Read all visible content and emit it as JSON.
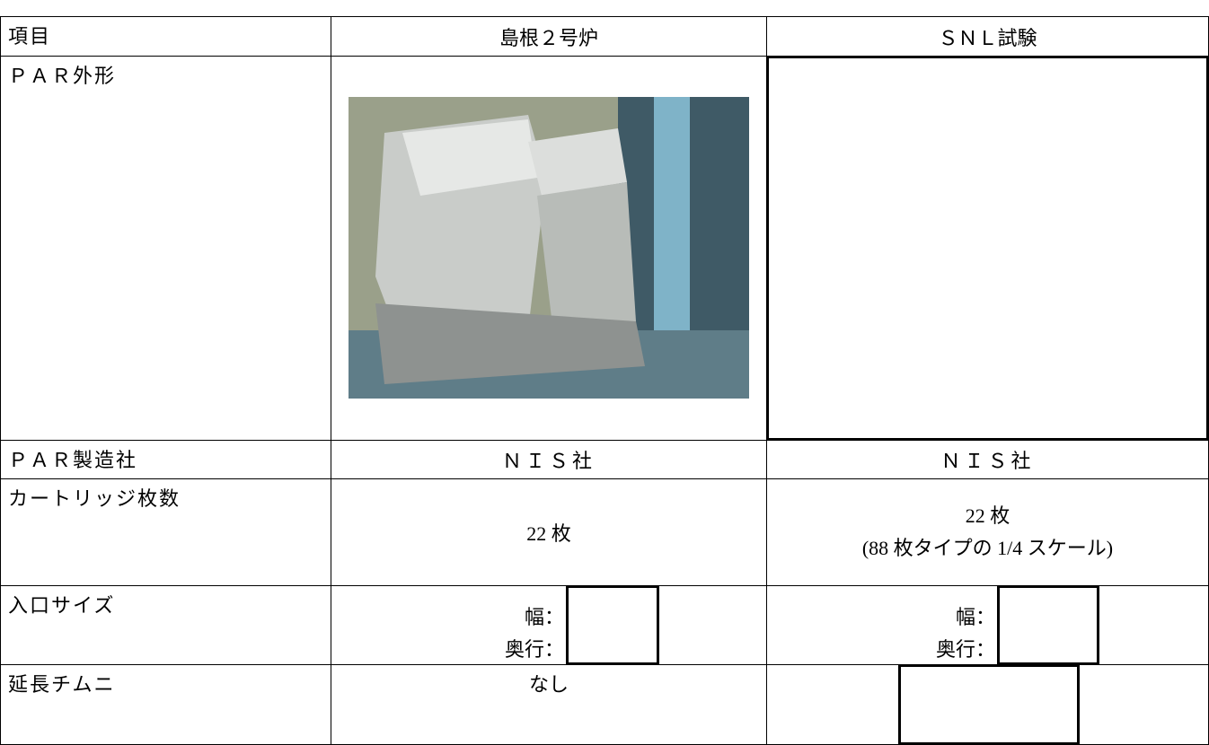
{
  "table": {
    "header": [
      "項目",
      "島根２号炉",
      "ＳＮＬ試験"
    ],
    "rows": [
      [
        "ＰＡＲ外形"
      ],
      [
        "ＰＡＲ製造社",
        "ＮＩＳ社",
        "ＮＩＳ社"
      ],
      [
        "カートリッジ枚数",
        "22 枚",
        "22 枚",
        "(88 枚タイプの 1/4 スケール)"
      ],
      [
        "入口サイズ",
        "幅：",
        "奥行：",
        "幅：",
        "奥行："
      ],
      [
        "延長チムニ",
        "なし"
      ]
    ]
  }
}
